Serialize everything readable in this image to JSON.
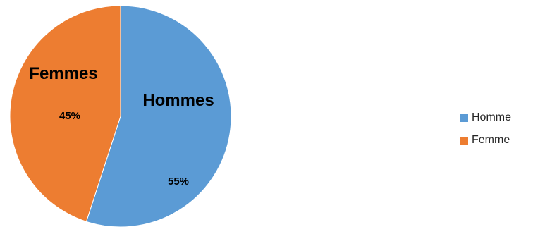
{
  "chart_data": {
    "type": "pie",
    "title": "",
    "slices": [
      {
        "label": "Hommes",
        "percent_label": "55%",
        "value": 55,
        "color": "#5B9BD5"
      },
      {
        "label": "Femmes",
        "percent_label": "45%",
        "value": 45,
        "color": "#ED7D31"
      }
    ],
    "legend": {
      "placement": "right",
      "entries": [
        {
          "label": "Homme",
          "color": "#5B9BD5"
        },
        {
          "label": "Femme",
          "color": "#ED7D31"
        }
      ]
    }
  }
}
